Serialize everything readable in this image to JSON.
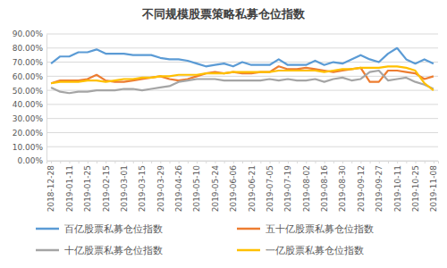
{
  "chart_data": {
    "type": "line",
    "title": "不同规模股票策略私募仓位指数",
    "categories": [
      "2018-12-28",
      null,
      "2019-01-11",
      null,
      "2019-01-25",
      null,
      "2019-02-15",
      null,
      "2019-03-01",
      null,
      "2019-03-15",
      null,
      "2019-03-29",
      null,
      "2019-04-26",
      null,
      "2019-05-10",
      null,
      "2019-05-24",
      null,
      "2019-06-06",
      null,
      "2019-06-21",
      null,
      "2019-07-05",
      null,
      "2019-07-19",
      null,
      "2019-08-02",
      null,
      "2019-08-16",
      null,
      "2019-08-30",
      null,
      "2019-09-12",
      null,
      "2019-09-27",
      null,
      "2019-10-11",
      null,
      "2019-10-25",
      null,
      "2019-11-08"
    ],
    "series": [
      {
        "name": "百亿股票私募仓位指数",
        "color": "#5b9bd5",
        "values": [
          69,
          74,
          74,
          77,
          77,
          79,
          76,
          76,
          76,
          75,
          75,
          75,
          73,
          72,
          72,
          71,
          69,
          67,
          68,
          69,
          67,
          70,
          68,
          68,
          68,
          72,
          68,
          68,
          68,
          71,
          68,
          70,
          69,
          72,
          75,
          72,
          70,
          76,
          80,
          72,
          69,
          72,
          69
        ]
      },
      {
        "name": "五十亿股票私募仓位指数",
        "color": "#ed7d31",
        "values": [
          55,
          57,
          57,
          57,
          58,
          61,
          57,
          56,
          56,
          57,
          58,
          59,
          60,
          58,
          57,
          58,
          60,
          62,
          63,
          62,
          63,
          62,
          62,
          63,
          63,
          67,
          65,
          65,
          66,
          65,
          64,
          63,
          64,
          65,
          66,
          56,
          56,
          64,
          64,
          63,
          62,
          58,
          60
        ]
      },
      {
        "name": "十亿股票私募仓位指数",
        "color": "#a5a5a5",
        "values": [
          52,
          49,
          48,
          49,
          49,
          50,
          50,
          50,
          51,
          51,
          50,
          51,
          52,
          53,
          56,
          57,
          58,
          58,
          58,
          57,
          57,
          57,
          57,
          57,
          58,
          57,
          58,
          57,
          57,
          58,
          56,
          58,
          59,
          57,
          58,
          63,
          64,
          57,
          58,
          59,
          56,
          54,
          51
        ]
      },
      {
        "name": "一亿股票私募仓位指数",
        "color": "#ffc000",
        "values": [
          55,
          56,
          56,
          56,
          57,
          57,
          56,
          57,
          58,
          58,
          59,
          59,
          60,
          60,
          61,
          61,
          61,
          62,
          62,
          62,
          63,
          63,
          63,
          63,
          63,
          64,
          64,
          64,
          64,
          64,
          63,
          64,
          65,
          65,
          66,
          66,
          66,
          67,
          67,
          66,
          64,
          55,
          50
        ]
      }
    ],
    "ylim": [
      0,
      90
    ],
    "yticks": [
      {
        "value": 0,
        "label": "0.00%"
      },
      {
        "value": 10,
        "label": "10.00%"
      },
      {
        "value": 20,
        "label": "20.00%"
      },
      {
        "value": 30,
        "label": "30.00%"
      },
      {
        "value": 40,
        "label": "40.00%"
      },
      {
        "value": 50,
        "label": "50.00%"
      },
      {
        "value": 60,
        "label": "60.00%"
      },
      {
        "value": 70,
        "label": "70.00%"
      },
      {
        "value": 80,
        "label": "80.00%"
      },
      {
        "value": 90,
        "label": "90.00%"
      }
    ],
    "grid": true,
    "legend": "bottom"
  }
}
